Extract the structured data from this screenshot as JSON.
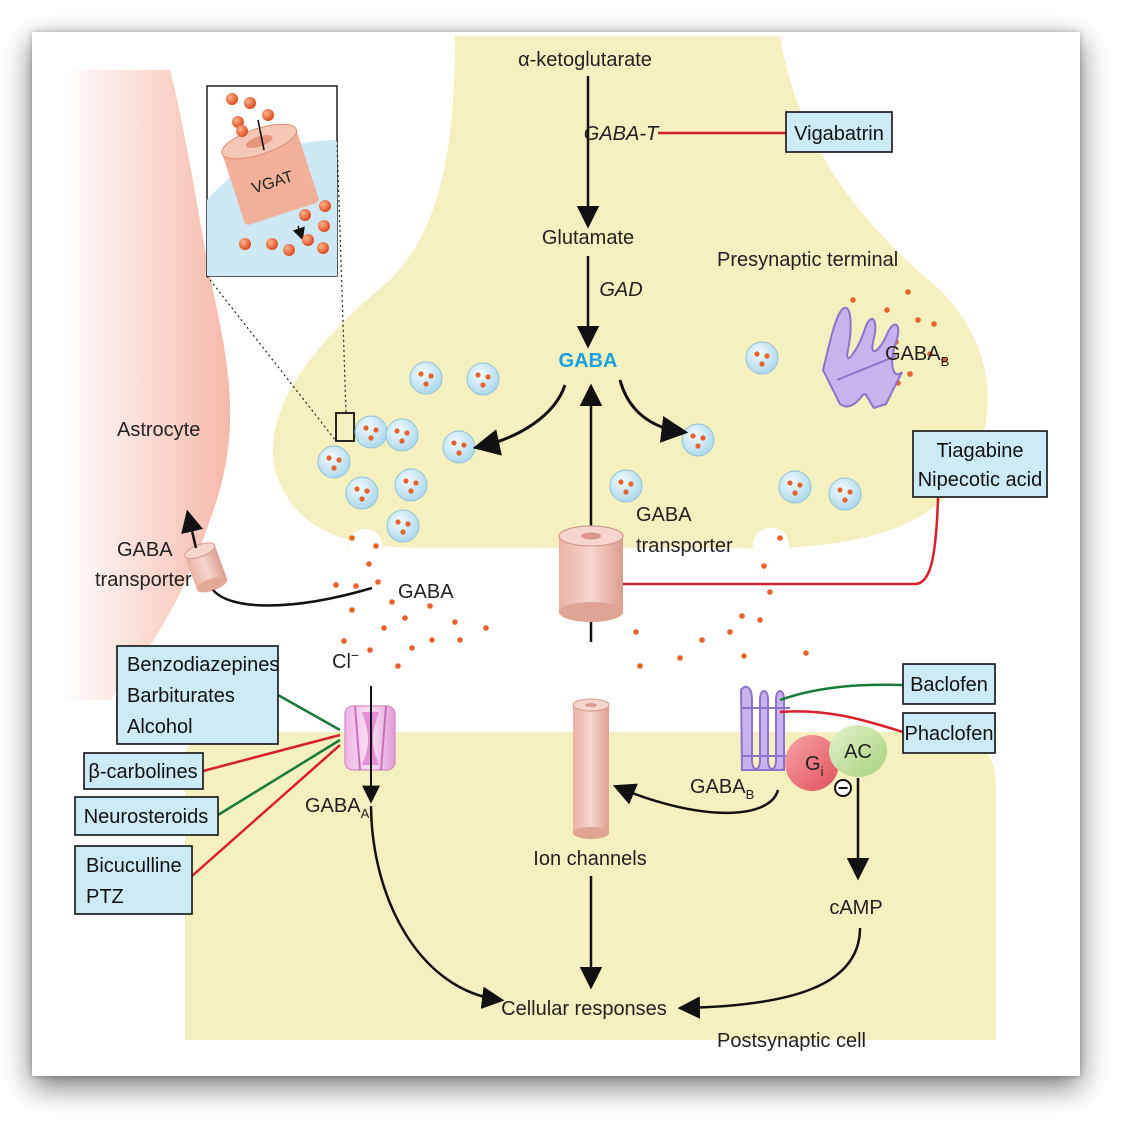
{
  "labels": {
    "alpha_ketoglutarate": "α-ketoglutarate",
    "gaba_t": "GABA-T",
    "glutamate": "Glutamate",
    "gad": "GAD",
    "gaba_center": "GABA",
    "presynaptic_terminal": "Presynaptic terminal",
    "gaba_b_pre": "GABA",
    "gaba_b_pre_sub": "B",
    "astrocyte": "Astrocyte",
    "gaba_transporter_astro_1": "GABA",
    "gaba_transporter_astro_2": "transporter",
    "gaba_transporter_pre_1": "GABA",
    "gaba_transporter_pre_2": "transporter",
    "gaba_cleft": "GABA",
    "cl_ion": "Cl",
    "cl_sup": "−",
    "gaba_a": "GABA",
    "gaba_a_sub": "A",
    "gaba_b_post": "GABA",
    "gaba_b_post_sub": "B",
    "ion_channels": "Ion channels",
    "g_i": "G",
    "g_i_sub": "i",
    "ac": "AC",
    "inhibit_sign": "−",
    "camp": "cAMP",
    "cellular_responses": "Cellular responses",
    "postsynaptic_cell": "Postsynaptic cell",
    "vgat": "VGAT"
  },
  "drugs": {
    "vigabatrin": "Vigabatrin",
    "tiagabine": "Tiagabine",
    "nipecotic": "Nipecotic acid",
    "benzodiazepines": "Benzodiazepines",
    "barbiturates": "Barbiturates",
    "alcohol": "Alcohol",
    "beta_carbolines": "β-carbolines",
    "neurosteroids": "Neurosteroids",
    "bicuculline": "Bicuculline",
    "ptz": "PTZ",
    "baclofen": "Baclofen",
    "phaclofen": "Phaclofen"
  },
  "colors": {
    "terminal_fill": "#f5f0bf",
    "astrocyte_fill": "#f8c9bd",
    "vesicle_fill": "#d8eef6",
    "gaba_dot": "#e8622c",
    "gaba_label": "#1aa0e0",
    "inhibit_line": "#d7202a",
    "agonist_line": "#1a7a3a",
    "receptor_purple": "#a88fd8",
    "transporter_pink": "#efc4b8",
    "gi_red": "#ee6a72",
    "ac_green": "#c6e3a4"
  }
}
